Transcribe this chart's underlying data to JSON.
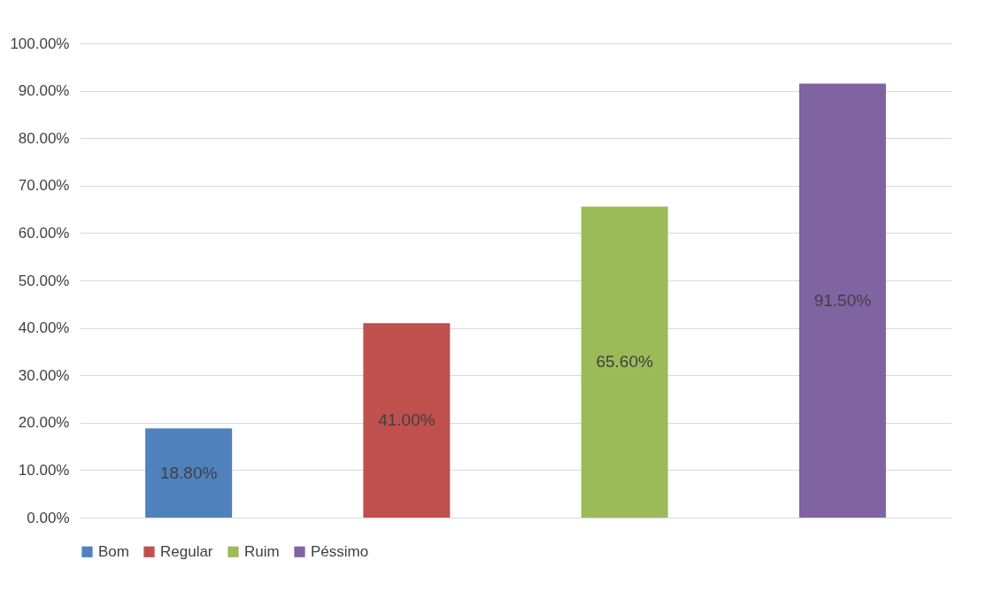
{
  "chart_data": {
    "type": "bar",
    "categories": [
      null,
      null,
      null,
      null
    ],
    "series": [
      {
        "name": "Bom",
        "color": "#4f81bd",
        "values": [
          18.8,
          null,
          null,
          null
        ],
        "value_labels": [
          "18.80%",
          null,
          null,
          null
        ]
      },
      {
        "name": "Regular",
        "color": "#c0504d",
        "values": [
          null,
          41.0,
          null,
          null
        ],
        "value_labels": [
          null,
          "41.00%",
          null,
          null
        ]
      },
      {
        "name": "Ruim",
        "color": "#9bbb59",
        "values": [
          null,
          null,
          65.6,
          null
        ],
        "value_labels": [
          null,
          null,
          "65.60%",
          null
        ]
      },
      {
        "name": "Péssimo",
        "color": "#8064a2",
        "values": [
          null,
          null,
          null,
          91.5
        ],
        "value_labels": [
          null,
          null,
          null,
          "91.50%"
        ]
      }
    ],
    "ylim": [
      0,
      100
    ],
    "yticks": [
      {
        "value": 0,
        "label": "0.00%"
      },
      {
        "value": 10,
        "label": "10.00%"
      },
      {
        "value": 20,
        "label": "20.00%"
      },
      {
        "value": 30,
        "label": "30.00%"
      },
      {
        "value": 40,
        "label": "40.00%"
      },
      {
        "value": 50,
        "label": "50.00%"
      },
      {
        "value": 60,
        "label": "60.00%"
      },
      {
        "value": 70,
        "label": "70.00%"
      },
      {
        "value": 80,
        "label": "80.00%"
      },
      {
        "value": 90,
        "label": "90.00%"
      },
      {
        "value": 100,
        "label": "100.00%"
      }
    ],
    "grid": "y",
    "legend": "bottom",
    "tick_labels": "y"
  }
}
